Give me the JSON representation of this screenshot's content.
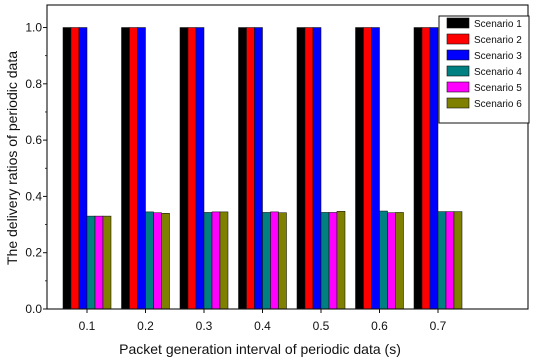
{
  "chart_data": {
    "type": "bar",
    "title": "",
    "xlabel": "Packet generation interval of periodic data (s)",
    "ylabel": "The delivery ratios of  periodic data",
    "categories": [
      "0.1",
      "0.2",
      "0.3",
      "0.4",
      "0.5",
      "0.6",
      "0.7"
    ],
    "ylim": [
      0,
      1.08
    ],
    "yticks": [
      "0.0",
      "0.2",
      "0.4",
      "0.6",
      "0.8",
      "1.0"
    ],
    "legend_position": "top-right",
    "grid": false,
    "series": [
      {
        "name": "Scenario 1",
        "color": "#000000",
        "values": [
          1.0,
          1.0,
          1.0,
          1.0,
          1.0,
          1.0,
          1.0
        ]
      },
      {
        "name": "Scenario 2",
        "color": "#ff0000",
        "values": [
          1.0,
          1.0,
          1.0,
          1.0,
          1.0,
          1.0,
          1.0
        ]
      },
      {
        "name": "Scenario 3",
        "color": "#0000ff",
        "values": [
          1.0,
          1.0,
          1.0,
          1.0,
          1.0,
          1.0,
          1.0
        ]
      },
      {
        "name": "Scenario 4",
        "color": "#008080",
        "values": [
          0.33,
          0.345,
          0.343,
          0.343,
          0.343,
          0.348,
          0.346
        ]
      },
      {
        "name": "Scenario 5",
        "color": "#ff00ff",
        "values": [
          0.33,
          0.342,
          0.345,
          0.345,
          0.343,
          0.342,
          0.346
        ]
      },
      {
        "name": "Scenario 6",
        "color": "#808000",
        "values": [
          0.33,
          0.34,
          0.345,
          0.342,
          0.347,
          0.343,
          0.346
        ]
      }
    ]
  }
}
